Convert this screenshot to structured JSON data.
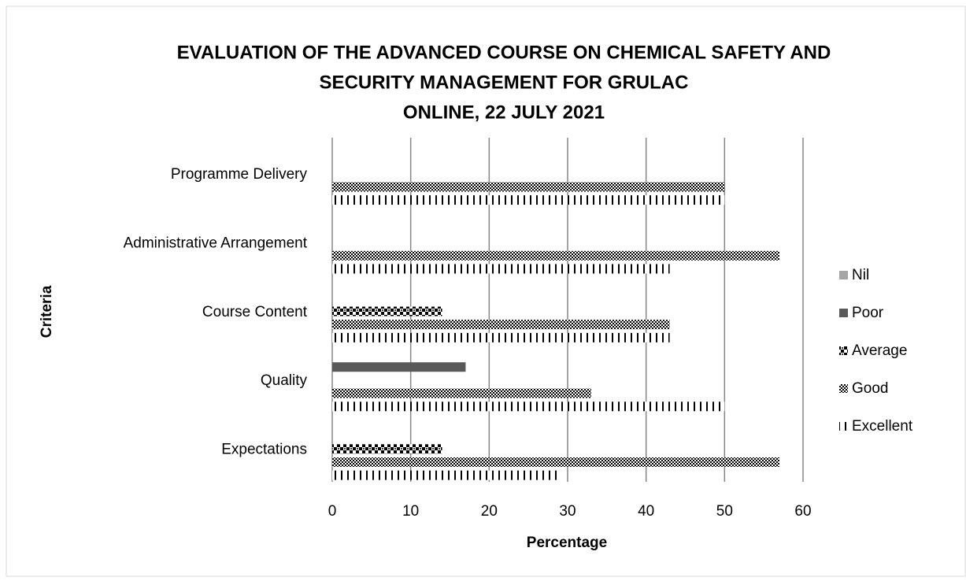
{
  "chart_data": {
    "type": "barh",
    "title": [
      "EVALUATION OF THE ADVANCED COURSE ON CHEMICAL  SAFETY AND",
      "SECURITY MANAGEMENT FOR GRULAC"
    ],
    "subtitle": "ONLINE, 22 JULY  2021",
    "x_label": "Percentage",
    "y_label": "Criteria",
    "categories": [
      "Programme Delivery",
      "Administrative Arrangement",
      "Course Content",
      "Quality",
      "Expectations"
    ],
    "series": [
      {
        "name": "Nil",
        "color": "#a5a5a5",
        "pattern": "solid",
        "values": [
          0,
          0,
          0,
          0,
          0
        ]
      },
      {
        "name": "Poor",
        "color": "#595959",
        "pattern": "solid",
        "values": [
          0,
          0,
          0,
          17,
          0
        ]
      },
      {
        "name": "Average",
        "color": "#000000",
        "pattern": "checker",
        "values": [
          0,
          0,
          14,
          0,
          14
        ]
      },
      {
        "name": "Good",
        "color": "#000000",
        "pattern": "crosshatch",
        "values": [
          50,
          57,
          43,
          33,
          57
        ]
      },
      {
        "name": "Excellent",
        "color": "#000000",
        "pattern": "vertical",
        "values": [
          50,
          43,
          43,
          50,
          29
        ]
      }
    ],
    "xlim": [
      0,
      60
    ],
    "xticks": [
      0,
      10,
      20,
      30,
      40,
      50,
      60
    ],
    "grid": true,
    "legend": "right"
  }
}
